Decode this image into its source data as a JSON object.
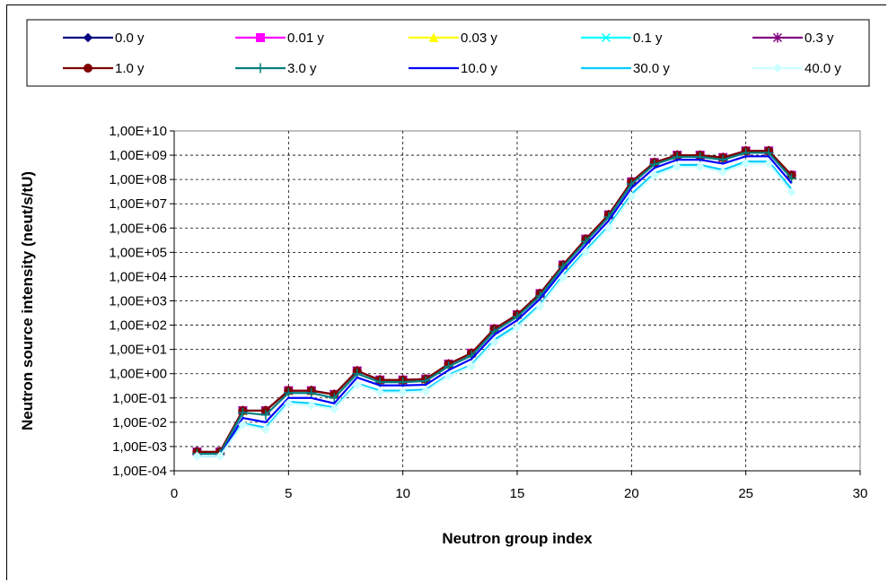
{
  "chart_data": {
    "type": "line",
    "title": "",
    "xlabel": "Neutron group index",
    "ylabel": "Neutron source intensity (neut/s/tU)",
    "xlim": [
      0,
      30
    ],
    "xticks": [
      0,
      5,
      10,
      15,
      20,
      25,
      30
    ],
    "xtick_labels": [
      "0",
      "5",
      "10",
      "15",
      "20",
      "25",
      "30"
    ],
    "y_scale": "log",
    "ylim": [
      0.0001,
      10000000000
    ],
    "ytick_labels": [
      "1,00E-04",
      "1,00E-03",
      "1,00E-02",
      "1,00E-01",
      "1,00E+00",
      "1,00E+01",
      "1,00E+02",
      "1,00E+03",
      "1,00E+04",
      "1,00E+05",
      "1,00E+06",
      "1,00E+07",
      "1,00E+08",
      "1,00E+09",
      "1,00E+10"
    ],
    "grid": "major dashed",
    "legend_position": "top",
    "x": [
      1,
      2,
      3,
      4,
      5,
      6,
      7,
      8,
      9,
      10,
      11,
      12,
      13,
      14,
      15,
      16,
      17,
      18,
      19,
      20,
      21,
      22,
      23,
      24,
      25,
      26,
      27
    ],
    "series": [
      {
        "name": "0.0 y",
        "color": "#000080",
        "marker": "diamond",
        "values": [
          0.0006,
          0.0006,
          0.03,
          0.03,
          0.2,
          0.2,
          0.14,
          1.3,
          0.55,
          0.55,
          0.6,
          2.5,
          7,
          70,
          270,
          2000,
          30000,
          350000,
          3500000,
          80000000,
          500000000,
          1000000000,
          1000000000,
          800000000,
          1500000000,
          1500000000,
          150000000
        ]
      },
      {
        "name": "0.01 y",
        "color": "#FF00FF",
        "marker": "square",
        "values": [
          0.0006,
          0.0006,
          0.03,
          0.03,
          0.2,
          0.2,
          0.14,
          1.3,
          0.55,
          0.55,
          0.6,
          2.5,
          7,
          70,
          270,
          2000,
          30000,
          350000,
          3500000,
          80000000,
          500000000,
          1000000000,
          1000000000,
          800000000,
          1500000000,
          1500000000,
          150000000
        ]
      },
      {
        "name": "0.03 y",
        "color": "#FFFF00",
        "marker": "triangle",
        "values": [
          0.0006,
          0.0006,
          0.03,
          0.03,
          0.2,
          0.2,
          0.14,
          1.3,
          0.55,
          0.55,
          0.6,
          2.5,
          7,
          70,
          270,
          2000,
          30000,
          350000,
          3500000,
          80000000,
          500000000,
          1000000000,
          1000000000,
          800000000,
          1500000000,
          1500000000,
          150000000
        ]
      },
      {
        "name": "0.1 y",
        "color": "#00FFFF",
        "marker": "x",
        "values": [
          0.0006,
          0.0006,
          0.03,
          0.03,
          0.2,
          0.2,
          0.14,
          1.3,
          0.55,
          0.55,
          0.6,
          2.5,
          7,
          70,
          270,
          2000,
          30000,
          350000,
          3500000,
          80000000,
          500000000,
          1000000000,
          1000000000,
          800000000,
          1500000000,
          1500000000,
          150000000
        ]
      },
      {
        "name": "0.3 y",
        "color": "#800080",
        "marker": "asterisk",
        "values": [
          0.0006,
          0.0006,
          0.03,
          0.03,
          0.2,
          0.2,
          0.14,
          1.3,
          0.55,
          0.55,
          0.6,
          2.5,
          7,
          70,
          270,
          2000,
          30000,
          350000,
          3500000,
          80000000,
          500000000,
          1000000000,
          1000000000,
          800000000,
          1500000000,
          1500000000,
          150000000
        ]
      },
      {
        "name": "1.0 y",
        "color": "#800000",
        "marker": "circle",
        "values": [
          0.0006,
          0.0006,
          0.03,
          0.03,
          0.2,
          0.2,
          0.14,
          1.3,
          0.55,
          0.55,
          0.6,
          2.5,
          7,
          70,
          270,
          2000,
          30000,
          350000,
          3500000,
          80000000,
          500000000,
          1000000000,
          1000000000,
          800000000,
          1500000000,
          1500000000,
          150000000
        ]
      },
      {
        "name": "3.0 y",
        "color": "#008080",
        "marker": "plus",
        "values": [
          0.0005,
          0.0005,
          0.025,
          0.02,
          0.16,
          0.16,
          0.1,
          1.0,
          0.45,
          0.45,
          0.5,
          2.0,
          5.5,
          55,
          220,
          1600,
          25000,
          280000,
          2800000,
          65000000,
          420000000,
          850000000,
          850000000,
          650000000,
          1250000000,
          1250000000,
          110000000
        ]
      },
      {
        "name": "10.0 y",
        "color": "#0000FF",
        "marker": "none",
        "values": [
          0.0004,
          0.0004,
          0.015,
          0.01,
          0.1,
          0.1,
          0.06,
          0.7,
          0.33,
          0.33,
          0.35,
          1.4,
          4,
          40,
          160,
          1200,
          18000,
          200000,
          2000000,
          45000000,
          300000000,
          650000000,
          650000000,
          450000000,
          900000000,
          900000000,
          70000000
        ]
      },
      {
        "name": "30.0 y",
        "color": "#00CCFF",
        "marker": "none",
        "values": [
          0.0004,
          0.0004,
          0.009,
          0.006,
          0.07,
          0.06,
          0.04,
          0.4,
          0.2,
          0.2,
          0.22,
          0.9,
          2.3,
          25,
          100,
          700,
          11000,
          120000,
          1200000,
          25000000,
          180000000,
          400000000,
          400000000,
          250000000,
          550000000,
          550000000,
          40000000
        ]
      },
      {
        "name": "40.0 y",
        "color": "#CCFFFF",
        "marker": "diamond",
        "values": [
          0.0004,
          0.0004,
          0.008,
          0.005,
          0.06,
          0.05,
          0.035,
          0.35,
          0.17,
          0.17,
          0.19,
          0.8,
          2,
          20,
          80,
          600,
          9000,
          100000,
          1000000,
          20000000,
          150000000,
          330000000,
          330000000,
          200000000,
          450000000,
          450000000,
          30000000
        ]
      }
    ]
  }
}
